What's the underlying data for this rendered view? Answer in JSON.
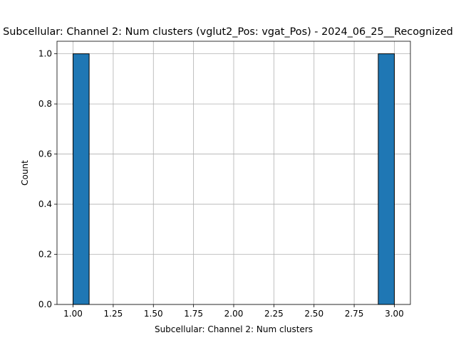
{
  "chart_data": {
    "type": "bar",
    "subtype": "histogram",
    "title": "Subcellular: Channel 2: Num clusters (vglut2_Pos: vgat_Pos) - 2024_06_25__Recognized",
    "xlabel": "Subcellular: Channel 2: Num clusters",
    "ylabel": "Count",
    "xlim": [
      0.9,
      3.1
    ],
    "ylim": [
      0,
      1.05
    ],
    "x_ticks": [
      "1.00",
      "1.25",
      "1.50",
      "1.75",
      "2.00",
      "2.25",
      "2.50",
      "2.75",
      "3.00"
    ],
    "x_tick_values": [
      1.0,
      1.25,
      1.5,
      1.75,
      2.0,
      2.25,
      2.5,
      2.75,
      3.0
    ],
    "y_ticks": [
      "0.0",
      "0.2",
      "0.4",
      "0.6",
      "0.8",
      "1.0"
    ],
    "y_tick_values": [
      0.0,
      0.2,
      0.4,
      0.6,
      0.8,
      1.0
    ],
    "grid": true,
    "bins": [
      {
        "x_start": 1.0,
        "x_end": 1.1,
        "count": 1
      },
      {
        "x_start": 2.9,
        "x_end": 3.0,
        "count": 1
      }
    ],
    "colors": {
      "bar_fill": "#1f77b4",
      "bar_edge": "#000000",
      "grid": "#b0b0b0",
      "axes": "#000000"
    }
  }
}
